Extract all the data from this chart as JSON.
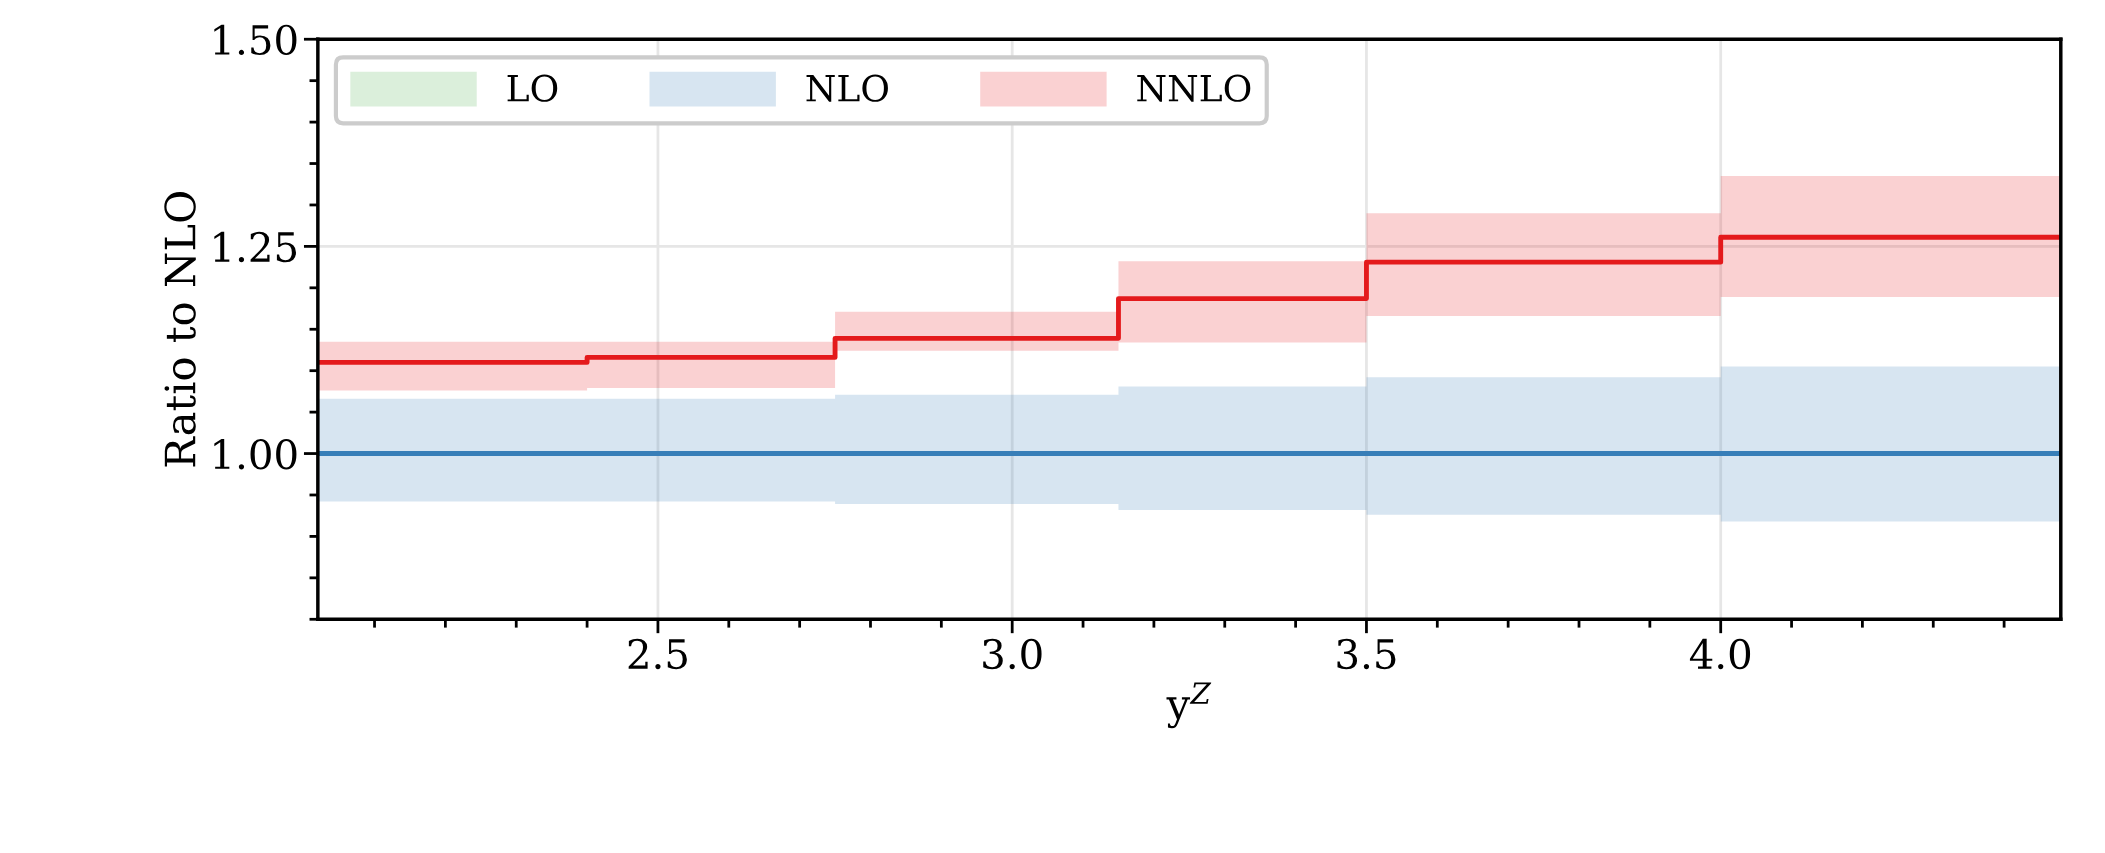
{
  "chart_data": {
    "type": "step",
    "xlabel": "y$^{Z}$",
    "ylabel": "Ratio to NLO",
    "x": [
      2.02,
      2.4,
      2.75,
      3.15,
      3.5,
      4.0,
      4.48
    ],
    "series": [
      {
        "name": "LO",
        "color": "#4daf4a",
        "values": [
          null,
          null,
          null,
          null,
          null,
          null,
          null
        ]
      },
      {
        "name": "NLO",
        "color": "#377eb8",
        "values": [
          1.0,
          1.0,
          1.0,
          1.0,
          1.0,
          1.0,
          1.0
        ],
        "lower": [
          0.942,
          0.942,
          0.939,
          0.932,
          0.926,
          0.918,
          0.918
        ],
        "upper": [
          1.066,
          1.066,
          1.071,
          1.081,
          1.092,
          1.105,
          1.105
        ]
      },
      {
        "name": "NNLO",
        "color": "#e41a1c",
        "values": [
          1.11,
          1.116,
          1.139,
          1.187,
          1.231,
          1.261,
          1.261
        ],
        "lower": [
          1.076,
          1.079,
          1.124,
          1.134,
          1.166,
          1.189,
          1.189
        ],
        "upper": [
          1.135,
          1.135,
          1.171,
          1.232,
          1.29,
          1.335,
          1.335
        ]
      }
    ],
    "xlim": [
      2.02,
      4.48
    ],
    "xticks": [
      2.5,
      {
        "value": 3,
        "label": "3.0"
      },
      3.5,
      {
        "value": 4,
        "label": "4.0"
      }
    ],
    "ylim": [
      0.8,
      1.5
    ],
    "yticks": [
      {
        "value": 1.0,
        "label": "1.00"
      },
      {
        "value": 1.25,
        "label": "1.25"
      },
      {
        "value": 1.5,
        "label": "1.50"
      }
    ],
    "grid": true,
    "legend": "top left"
  }
}
